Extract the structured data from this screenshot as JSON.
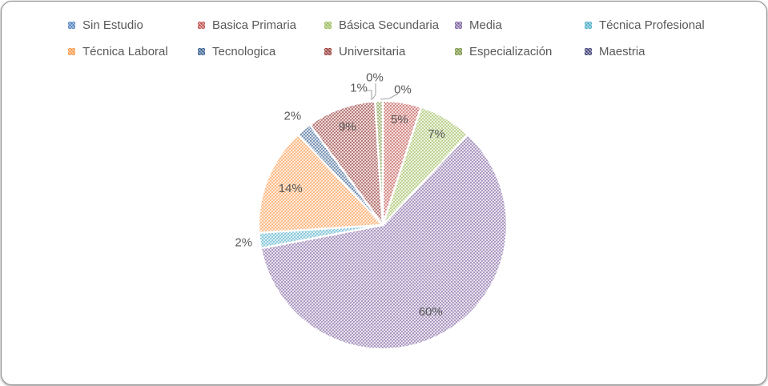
{
  "chart_data": {
    "type": "pie",
    "title": "",
    "legend_position": "top",
    "data_labels": "percent",
    "categories": [
      "Sin Estudio",
      "Basica Primaria",
      "Básica Secundaria",
      "Media",
      "Técnica Profesional",
      "Técnica Laboral",
      "Tecnologica",
      "Universitaria",
      "Especialización",
      "Maestria"
    ],
    "values": [
      0,
      5,
      7,
      60,
      2,
      14,
      2,
      9,
      1,
      0
    ],
    "value_labels": [
      "0%",
      "5%",
      "7%",
      "60%",
      "2%",
      "14%",
      "2%",
      "9%",
      "1%",
      "0%"
    ],
    "colors": [
      "#4F81BD",
      "#C0504D",
      "#9BBB59",
      "#8064A2",
      "#4BACC6",
      "#F79646",
      "#365F91",
      "#943634",
      "#76933C",
      "#3F3F76"
    ],
    "fill_style": "diagonal-crosshatch-pattern",
    "label_color": "#595959",
    "leader_line_color": "#a6a6a6",
    "start_angle_deg": 0,
    "direction": "clockwise"
  }
}
